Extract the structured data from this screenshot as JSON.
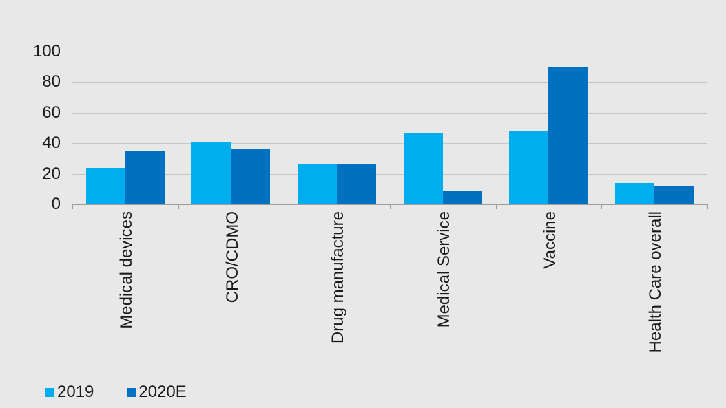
{
  "chart_data": {
    "type": "bar",
    "title": "",
    "xlabel": "",
    "ylabel": "",
    "categories": [
      "Medical devices",
      "CRO/CDMO",
      "Drug manufacture",
      "Medical Service",
      "Vaccine",
      "Health Care overall"
    ],
    "series": [
      {
        "name": "2019",
        "color": "#00AEEF",
        "values": [
          24,
          41,
          26,
          47,
          48,
          14
        ]
      },
      {
        "name": "2020E",
        "color": "#0071BE",
        "values": [
          35,
          36,
          26,
          9,
          90,
          12
        ]
      }
    ],
    "ylim": [
      0,
      100
    ],
    "yticks": [
      0,
      20,
      40,
      60,
      80,
      100
    ],
    "grid": true,
    "legend_position": "bottom-left",
    "x_label_rotation_deg": 90
  },
  "colors": {
    "background": "#E8E8E8",
    "gridline": "#C6C6C6",
    "axis_line": "#9E9E9E",
    "text": "#1A1A1A"
  }
}
